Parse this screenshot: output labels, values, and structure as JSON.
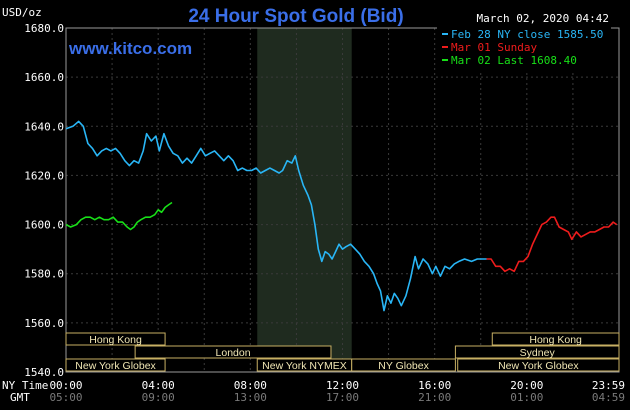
{
  "chart_data": {
    "type": "line",
    "title": "24 Hour Spot Gold (Bid)",
    "watermark": "www.kitco.com",
    "timestamp": "March 02, 2020 04:42",
    "ylabel": "USD/oz",
    "ylim": [
      1540,
      1680
    ],
    "yticks": [
      "1680.0",
      "1660.0",
      "1640.0",
      "1620.0",
      "1600.0",
      "1580.0",
      "1560.0",
      "1540.0"
    ],
    "xlim": [
      0,
      24
    ],
    "x_unit": "hours since 00:00 NY time",
    "xticks_ny": [
      "00:00",
      "04:00",
      "08:00",
      "12:00",
      "16:00",
      "20:00",
      "23:59"
    ],
    "xticks_gmt": [
      "05:00",
      "09:00",
      "13:00",
      "17:00",
      "21:00",
      "01:00",
      "04:59"
    ],
    "xtick_hours": [
      0,
      4,
      8,
      12,
      16,
      20,
      24
    ],
    "row_label_ny": "NY Time",
    "row_label_gmt": "GMT",
    "grid": true,
    "legend_position": "top-right",
    "shaded_region_hours": [
      8.3,
      12.4
    ],
    "series": [
      {
        "name": "Feb 28 NY close 1585.50",
        "color": "#29b6f6",
        "points": [
          [
            0.0,
            1639
          ],
          [
            0.3,
            1640
          ],
          [
            0.55,
            1642
          ],
          [
            0.75,
            1640
          ],
          [
            0.95,
            1633
          ],
          [
            1.15,
            1631
          ],
          [
            1.35,
            1628
          ],
          [
            1.55,
            1630
          ],
          [
            1.75,
            1631
          ],
          [
            1.95,
            1630
          ],
          [
            2.15,
            1631
          ],
          [
            2.35,
            1629
          ],
          [
            2.55,
            1626
          ],
          [
            2.75,
            1624
          ],
          [
            2.95,
            1626
          ],
          [
            3.15,
            1625
          ],
          [
            3.35,
            1630
          ],
          [
            3.5,
            1637
          ],
          [
            3.7,
            1634
          ],
          [
            3.9,
            1636
          ],
          [
            4.05,
            1630
          ],
          [
            4.25,
            1637
          ],
          [
            4.45,
            1632
          ],
          [
            4.65,
            1629
          ],
          [
            4.85,
            1628
          ],
          [
            5.05,
            1625
          ],
          [
            5.25,
            1627
          ],
          [
            5.45,
            1625
          ],
          [
            5.65,
            1628
          ],
          [
            5.85,
            1631
          ],
          [
            6.05,
            1628
          ],
          [
            6.25,
            1629
          ],
          [
            6.45,
            1630
          ],
          [
            6.65,
            1628
          ],
          [
            6.85,
            1626
          ],
          [
            7.05,
            1628
          ],
          [
            7.25,
            1626
          ],
          [
            7.45,
            1622
          ],
          [
            7.65,
            1623
          ],
          [
            7.85,
            1622
          ],
          [
            8.05,
            1622
          ],
          [
            8.25,
            1623
          ],
          [
            8.45,
            1621
          ],
          [
            8.65,
            1622
          ],
          [
            8.85,
            1623
          ],
          [
            9.05,
            1622
          ],
          [
            9.25,
            1621
          ],
          [
            9.4,
            1622
          ],
          [
            9.6,
            1626
          ],
          [
            9.8,
            1625
          ],
          [
            9.95,
            1628
          ],
          [
            10.1,
            1622
          ],
          [
            10.3,
            1616
          ],
          [
            10.5,
            1612
          ],
          [
            10.65,
            1608
          ],
          [
            10.8,
            1600
          ],
          [
            10.95,
            1590
          ],
          [
            11.1,
            1585
          ],
          [
            11.25,
            1589
          ],
          [
            11.4,
            1588
          ],
          [
            11.55,
            1586
          ],
          [
            11.7,
            1589
          ],
          [
            11.85,
            1592
          ],
          [
            12.0,
            1590
          ],
          [
            12.15,
            1591
          ],
          [
            12.35,
            1592
          ],
          [
            12.55,
            1590
          ],
          [
            12.75,
            1588
          ],
          [
            12.95,
            1585
          ],
          [
            13.15,
            1583
          ],
          [
            13.35,
            1580
          ],
          [
            13.5,
            1576
          ],
          [
            13.65,
            1573
          ],
          [
            13.8,
            1565
          ],
          [
            13.95,
            1571
          ],
          [
            14.1,
            1568
          ],
          [
            14.25,
            1572
          ],
          [
            14.4,
            1570
          ],
          [
            14.55,
            1567
          ],
          [
            14.75,
            1571
          ],
          [
            14.95,
            1578
          ],
          [
            15.15,
            1587
          ],
          [
            15.3,
            1582
          ],
          [
            15.5,
            1586
          ],
          [
            15.7,
            1584
          ],
          [
            15.9,
            1580
          ],
          [
            16.05,
            1583
          ],
          [
            16.25,
            1579
          ],
          [
            16.45,
            1583
          ],
          [
            16.65,
            1582
          ],
          [
            16.85,
            1584
          ],
          [
            17.05,
            1585
          ],
          [
            17.3,
            1586
          ],
          [
            17.6,
            1585
          ],
          [
            17.85,
            1586
          ],
          [
            18.1,
            1586
          ],
          [
            18.25,
            1586
          ]
        ]
      },
      {
        "name": "Mar 01 Sunday",
        "color": "#ee1c1c",
        "points": [
          [
            18.25,
            1586
          ],
          [
            18.45,
            1586
          ],
          [
            18.65,
            1583
          ],
          [
            18.85,
            1583
          ],
          [
            19.05,
            1581
          ],
          [
            19.25,
            1582
          ],
          [
            19.45,
            1581
          ],
          [
            19.65,
            1585
          ],
          [
            19.85,
            1585
          ],
          [
            20.05,
            1587
          ],
          [
            20.25,
            1592
          ],
          [
            20.45,
            1596
          ],
          [
            20.65,
            1600
          ],
          [
            20.85,
            1601
          ],
          [
            21.05,
            1603
          ],
          [
            21.2,
            1603
          ],
          [
            21.4,
            1599
          ],
          [
            21.6,
            1598
          ],
          [
            21.8,
            1597
          ],
          [
            21.95,
            1594
          ],
          [
            22.15,
            1597
          ],
          [
            22.35,
            1595
          ],
          [
            22.55,
            1596
          ],
          [
            22.75,
            1597
          ],
          [
            22.95,
            1597
          ],
          [
            23.15,
            1598
          ],
          [
            23.35,
            1599
          ],
          [
            23.55,
            1599
          ],
          [
            23.75,
            1601
          ],
          [
            23.9,
            1600
          ]
        ]
      },
      {
        "name": "Mar 02 Last 1608.40",
        "color": "#18e018",
        "points": [
          [
            0.0,
            1600
          ],
          [
            0.2,
            1599
          ],
          [
            0.45,
            1600
          ],
          [
            0.65,
            1602
          ],
          [
            0.85,
            1603
          ],
          [
            1.05,
            1603
          ],
          [
            1.25,
            1602
          ],
          [
            1.45,
            1603
          ],
          [
            1.65,
            1602
          ],
          [
            1.85,
            1602
          ],
          [
            2.05,
            1603
          ],
          [
            2.25,
            1601
          ],
          [
            2.45,
            1601
          ],
          [
            2.65,
            1599
          ],
          [
            2.8,
            1598
          ],
          [
            2.95,
            1599
          ],
          [
            3.1,
            1601
          ],
          [
            3.25,
            1602
          ],
          [
            3.45,
            1603
          ],
          [
            3.65,
            1603
          ],
          [
            3.85,
            1604
          ],
          [
            4.0,
            1606
          ],
          [
            4.15,
            1605
          ],
          [
            4.3,
            1607
          ],
          [
            4.45,
            1608
          ],
          [
            4.6,
            1609
          ]
        ]
      }
    ],
    "session_bars": [
      {
        "label": "Hong Kong",
        "start": 0.0,
        "end": 4.3,
        "row": 1
      },
      {
        "label": "Hong Kong",
        "start": 18.5,
        "end": 24.0,
        "row": 1
      },
      {
        "label": "London",
        "start": 3.0,
        "end": 11.5,
        "row": 2
      },
      {
        "label": "Sydney",
        "start": 16.9,
        "end": 24.0,
        "row": 2
      },
      {
        "label": "New York Globex",
        "start": 0.0,
        "end": 4.3,
        "row": 3
      },
      {
        "label": "New York NYMEX",
        "start": 8.3,
        "end": 12.4,
        "row": 3
      },
      {
        "label": "NY Globex",
        "start": 12.4,
        "end": 16.9,
        "row": 3
      },
      {
        "label": "New York Globex",
        "start": 17.0,
        "end": 24.0,
        "row": 3
      }
    ]
  }
}
